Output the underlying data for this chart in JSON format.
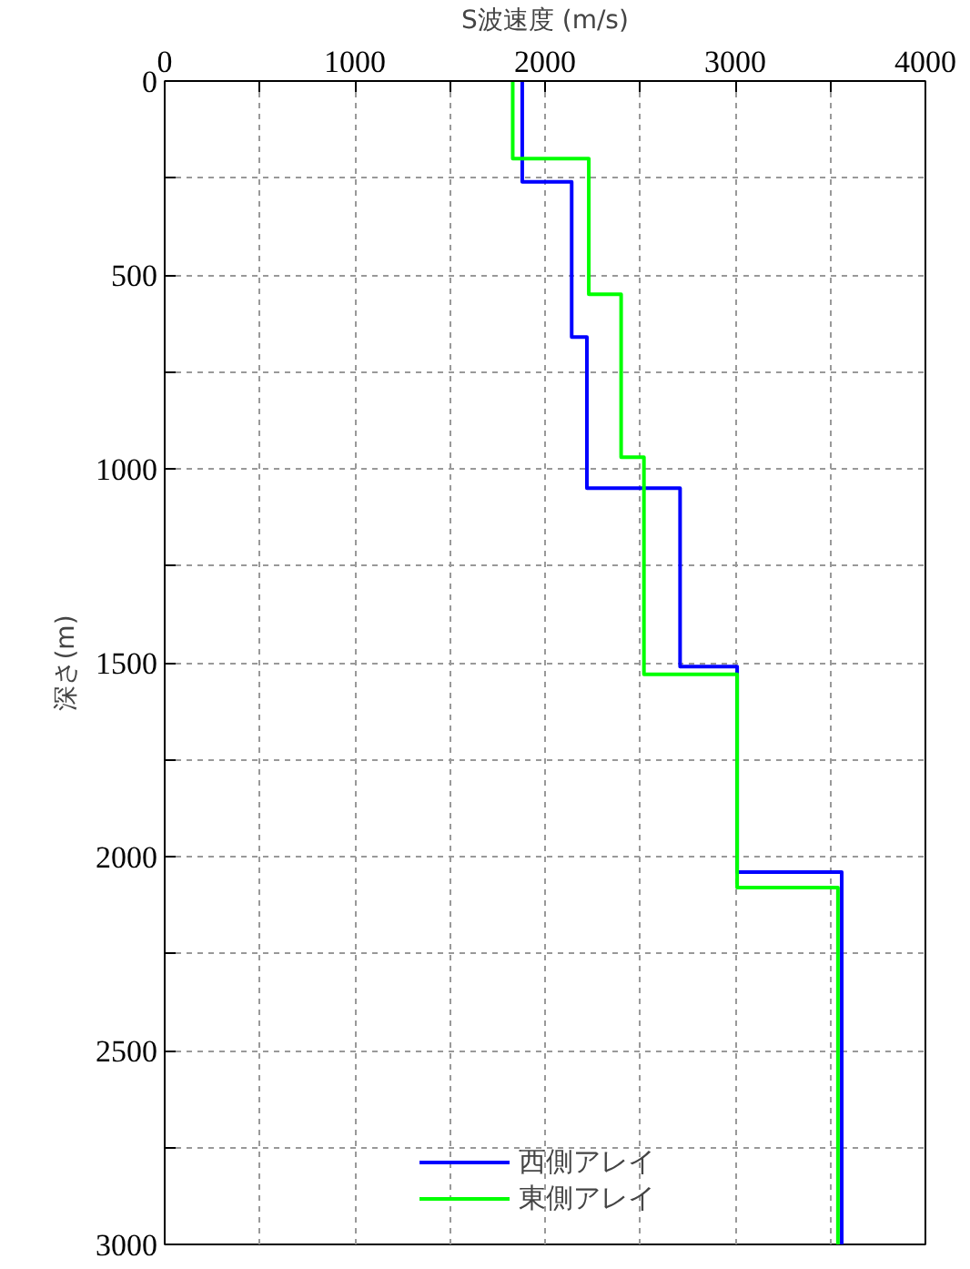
{
  "chart_data": {
    "type": "line",
    "xlabel": "S波速度 (m/s)",
    "ylabel": "深さ(m)",
    "xlim": [
      0,
      4000
    ],
    "ylim": [
      3000,
      0
    ],
    "xticks": [
      0,
      {
        "value": 500,
        "label": null
      },
      1000,
      {
        "value": 1500,
        "label": null
      },
      2000,
      {
        "value": 2500,
        "label": null
      },
      3000,
      {
        "value": 3500,
        "label": null
      },
      4000
    ],
    "yticks": [
      0,
      {
        "value": 250,
        "label": null
      },
      500,
      {
        "value": 750,
        "label": null
      },
      1000,
      {
        "value": 1250,
        "label": null
      },
      1500,
      {
        "value": 1750,
        "label": null
      },
      2000,
      {
        "value": 2250,
        "label": null
      },
      2500,
      {
        "value": 2750,
        "label": null
      },
      3000
    ],
    "grid": true,
    "legend": "bottom right",
    "line_style": "solid",
    "marker": "none",
    "series": [
      {
        "name": "西側アレイ",
        "color": "#0000ff",
        "x": [
          1880,
          1880,
          2140,
          2140,
          2220,
          2220,
          2710,
          2710,
          3010,
          3010,
          3560,
          3560
        ],
        "values": [
          0,
          260,
          260,
          660,
          660,
          1050,
          1050,
          1510,
          1510,
          2040,
          2040,
          3000
        ]
      },
      {
        "name": "東側アレイ",
        "color": "#00ff00",
        "x": [
          1830,
          1830,
          2230,
          2230,
          2400,
          2400,
          2520,
          2520,
          3010,
          3010,
          3540,
          3540
        ],
        "values": [
          0,
          200,
          200,
          550,
          550,
          970,
          970,
          1530,
          1530,
          2080,
          2080,
          3000
        ]
      }
    ]
  }
}
